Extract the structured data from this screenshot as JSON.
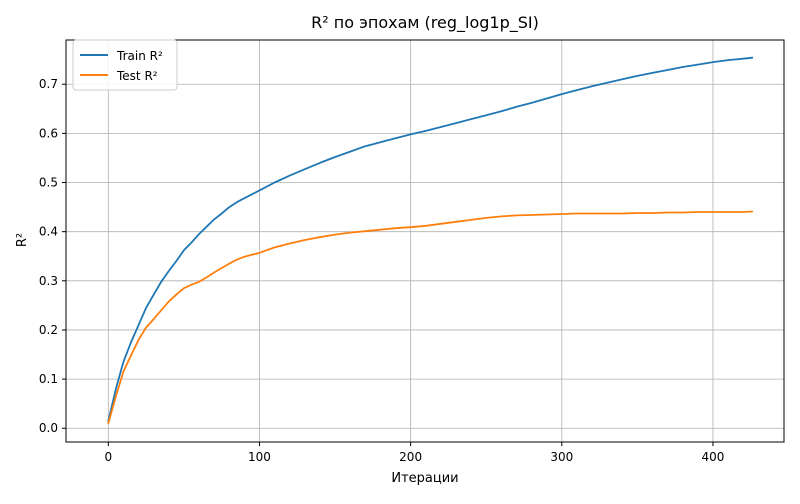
{
  "chart_data": {
    "type": "line",
    "title": "R² по эпохам (reg_log1p_SI)",
    "xlabel": "Итерации",
    "ylabel": "R²",
    "xlim": [
      -28,
      447
    ],
    "ylim": [
      -0.028,
      0.79
    ],
    "xticks": [
      0,
      100,
      200,
      300,
      400
    ],
    "xtick_labels": [
      "0",
      "100",
      "200",
      "300",
      "400"
    ],
    "yticks": [
      0.0,
      0.1,
      0.2,
      0.3,
      0.4,
      0.5,
      0.6,
      0.7
    ],
    "ytick_labels": [
      "0.0",
      "0.1",
      "0.2",
      "0.3",
      "0.4",
      "0.5",
      "0.6",
      "0.7"
    ],
    "grid": true,
    "legend_position": "top-left",
    "series": [
      {
        "name": "Train R²",
        "color": "#1f77b4",
        "x": [
          0,
          5,
          10,
          15,
          20,
          25,
          30,
          35,
          40,
          45,
          50,
          55,
          60,
          65,
          70,
          75,
          80,
          85,
          90,
          95,
          100,
          110,
          120,
          130,
          140,
          150,
          160,
          170,
          180,
          190,
          200,
          210,
          220,
          230,
          240,
          250,
          260,
          270,
          280,
          290,
          300,
          310,
          320,
          330,
          340,
          350,
          360,
          370,
          380,
          390,
          400,
          410,
          420,
          426
        ],
        "y": [
          0.015,
          0.08,
          0.135,
          0.175,
          0.21,
          0.245,
          0.272,
          0.298,
          0.32,
          0.34,
          0.362,
          0.378,
          0.395,
          0.41,
          0.425,
          0.437,
          0.45,
          0.46,
          0.468,
          0.476,
          0.484,
          0.5,
          0.514,
          0.527,
          0.54,
          0.552,
          0.563,
          0.574,
          0.582,
          0.59,
          0.598,
          0.605,
          0.613,
          0.621,
          0.629,
          0.637,
          0.645,
          0.654,
          0.662,
          0.671,
          0.68,
          0.688,
          0.696,
          0.703,
          0.71,
          0.717,
          0.723,
          0.729,
          0.735,
          0.74,
          0.745,
          0.749,
          0.752,
          0.754
        ]
      },
      {
        "name": "Test R²",
        "color": "#ff7f0e",
        "x": [
          0,
          5,
          10,
          15,
          20,
          25,
          30,
          35,
          40,
          45,
          50,
          55,
          60,
          65,
          70,
          75,
          80,
          85,
          90,
          95,
          100,
          110,
          120,
          130,
          140,
          150,
          160,
          170,
          180,
          190,
          200,
          210,
          220,
          230,
          240,
          250,
          260,
          270,
          280,
          290,
          300,
          310,
          320,
          330,
          340,
          350,
          360,
          370,
          380,
          390,
          400,
          410,
          420,
          426
        ],
        "y": [
          0.01,
          0.065,
          0.115,
          0.148,
          0.18,
          0.205,
          0.222,
          0.24,
          0.258,
          0.272,
          0.285,
          0.292,
          0.298,
          0.307,
          0.317,
          0.326,
          0.335,
          0.343,
          0.349,
          0.353,
          0.357,
          0.368,
          0.376,
          0.383,
          0.389,
          0.394,
          0.398,
          0.401,
          0.404,
          0.407,
          0.409,
          0.412,
          0.416,
          0.42,
          0.424,
          0.428,
          0.431,
          0.433,
          0.434,
          0.435,
          0.436,
          0.437,
          0.437,
          0.437,
          0.437,
          0.438,
          0.438,
          0.439,
          0.439,
          0.44,
          0.44,
          0.44,
          0.44,
          0.441
        ]
      }
    ]
  }
}
